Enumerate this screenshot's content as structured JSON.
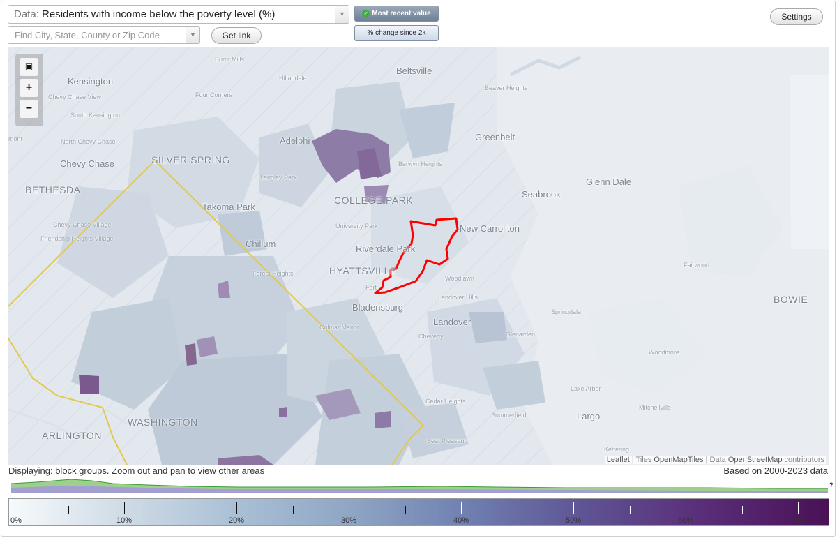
{
  "controls": {
    "data_prefix": "Data:",
    "data_value": "Residents with income below the poverty level (%)",
    "search_placeholder": "Find City, State, County or Zip Code",
    "get_link_label": "Get link",
    "settings_label": "Settings",
    "mode_active_label": "Most recent value",
    "mode_inactive_label": "% change since 2k"
  },
  "zoom": {
    "fit_icon": "fit-bounds-icon",
    "zoom_in_label": "+",
    "zoom_out_label": "−"
  },
  "map_labels": [
    {
      "text": "Burnt Mills",
      "cls": "small"
    },
    {
      "text": "Hillandale",
      "cls": "small"
    },
    {
      "text": "Beltsville",
      "cls": "city"
    },
    {
      "text": "Kensington",
      "cls": "city"
    },
    {
      "text": "Chevy Chase View",
      "cls": "small"
    },
    {
      "text": "Four Corners",
      "cls": "small"
    },
    {
      "text": "Beaver Heights",
      "cls": "small"
    },
    {
      "text": "South Kensington",
      "cls": "small"
    },
    {
      "text": "Greenbelt",
      "cls": "city"
    },
    {
      "text": "North Chevy Chase",
      "cls": "small"
    },
    {
      "text": "Adelphi",
      "cls": "city"
    },
    {
      "text": "Chevy Chase",
      "cls": "city"
    },
    {
      "text": "SILVER SPRING",
      "cls": "big"
    },
    {
      "text": "Berwyn Heights",
      "cls": "small"
    },
    {
      "text": "Glenn Dale",
      "cls": "city"
    },
    {
      "text": "BETHESDA",
      "cls": "big"
    },
    {
      "text": "Langley Park",
      "cls": "small"
    },
    {
      "text": "Seabrook",
      "cls": "city"
    },
    {
      "text": "COLLEGE PARK",
      "cls": "big"
    },
    {
      "text": "Takoma Park",
      "cls": "city"
    },
    {
      "text": "Chevy Chase Village",
      "cls": "small"
    },
    {
      "text": "University Park",
      "cls": "small"
    },
    {
      "text": "New Carrollton",
      "cls": "city"
    },
    {
      "text": "Friendship Heights Village",
      "cls": "small"
    },
    {
      "text": "Chillum",
      "cls": "city"
    },
    {
      "text": "Riverdale Park",
      "cls": "city"
    },
    {
      "text": "HYATTSVILLE",
      "cls": "big"
    },
    {
      "text": "Fairwood",
      "cls": "small"
    },
    {
      "text": "Woodlawn",
      "cls": "small"
    },
    {
      "text": "Landover Hills",
      "cls": "small"
    },
    {
      "text": "Bladensburg",
      "cls": "city"
    },
    {
      "text": "BOWIE",
      "cls": "big"
    },
    {
      "text": "Springdale",
      "cls": "small"
    },
    {
      "text": "Landover",
      "cls": "city"
    },
    {
      "text": "Colmar Manor",
      "cls": "small"
    },
    {
      "text": "Cheverly",
      "cls": "small"
    },
    {
      "text": "Glenarden",
      "cls": "small"
    },
    {
      "text": "Woodmore",
      "cls": "small"
    },
    {
      "text": "Lake Arbor",
      "cls": "small"
    },
    {
      "text": "Cedar Heights",
      "cls": "small"
    },
    {
      "text": "Mitchellville",
      "cls": "small"
    },
    {
      "text": "Summerfield",
      "cls": "small"
    },
    {
      "text": "Largo",
      "cls": "city"
    },
    {
      "text": "WASHINGTON",
      "cls": "big"
    },
    {
      "text": "ARLINGTON",
      "cls": "big"
    },
    {
      "text": "Seat Pleasant",
      "cls": "small"
    },
    {
      "text": "Kettering",
      "cls": "small"
    },
    {
      "text": "mont",
      "cls": "small"
    },
    {
      "text": "Forest Heights",
      "cls": "small"
    },
    {
      "text": "Fort",
      "cls": "small"
    }
  ],
  "attribution": {
    "leaflet": "Leaflet",
    "sep1": " | Tiles ",
    "tiles": "OpenMapTiles",
    "sep2": " | Data ",
    "data": "OpenStreetMap",
    "tail": " contributors"
  },
  "status": {
    "displaying": "Displaying: block groups. Zoom out and pan to view other areas",
    "based_on": "Based on 2000-2023 data",
    "question": "?"
  },
  "legend": {
    "labels": [
      "0%",
      "10%",
      "20%",
      "30%",
      "40%",
      "50%",
      "60%",
      "70%"
    ],
    "colors": {
      "low": "#f7fafc",
      "high": "#4a1156",
      "highlight": "#ff0000",
      "boundary": "#e3c84a"
    }
  }
}
